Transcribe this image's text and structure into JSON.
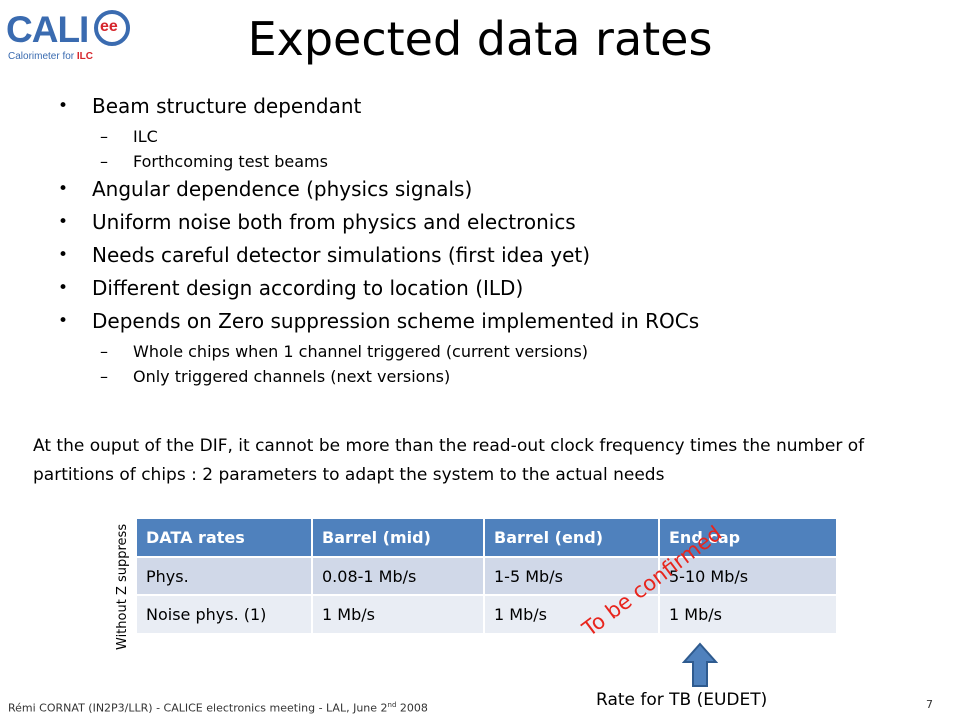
{
  "logo": {
    "text": "CALI",
    "eo": "ee",
    "sub": "Calorimeter for ",
    "sub_accent": "ILC"
  },
  "title": "Expected data rates",
  "bullets": [
    {
      "level": 1,
      "text": "Beam structure dependant"
    },
    {
      "level": 2,
      "text": "ILC"
    },
    {
      "level": 2,
      "text": "Forthcoming test beams"
    },
    {
      "level": 1,
      "text": "Angular dependence (physics signals)"
    },
    {
      "level": 1,
      "text": "Uniform noise both from physics and electronics"
    },
    {
      "level": 1,
      "text": "Needs careful detector simulations (first idea yet)"
    },
    {
      "level": 1,
      "text": "Different design according to location (ILD)"
    },
    {
      "level": 1,
      "text": "Depends on Zero suppression scheme implemented in ROCs"
    },
    {
      "level": 2,
      "text": "Whole chips when 1 channel triggered (current versions)"
    },
    {
      "level": 2,
      "text": "Only triggered channels (next versions)"
    }
  ],
  "paragraph": "At the ouput of the DIF, it cannot be more than  the read-out clock frequency times the number of partitions of chips : 2 parameters to adapt the system to the actual needs",
  "table": {
    "side_label": "Without Z suppress",
    "headers": [
      "DATA rates",
      "Barrel (mid)",
      "Barrel (end)",
      "End cap"
    ],
    "rows": [
      [
        "Phys.",
        "0.08-1 Mb/s",
        "1-5 Mb/s",
        "5-10 Mb/s"
      ],
      [
        "Noise phys. (1)",
        "1 Mb/s",
        "1 Mb/s",
        "1 Mb/s"
      ]
    ]
  },
  "annotation": "To be confirmed",
  "arrow_label": "Rate for TB (EUDET)",
  "footer": {
    "text": "Rémi CORNAT (IN2P3/LLR)  -  CALICE electronics meeting  -  LAL, June 2",
    "sup": "nd",
    "year": " 2008",
    "page": "7"
  },
  "colors": {
    "header_fill": "#4f81bd",
    "row1_fill": "#d0d8e8",
    "row2_fill": "#e9edf4",
    "annotation": "#e8251d",
    "arrow": "#4f81bd"
  }
}
